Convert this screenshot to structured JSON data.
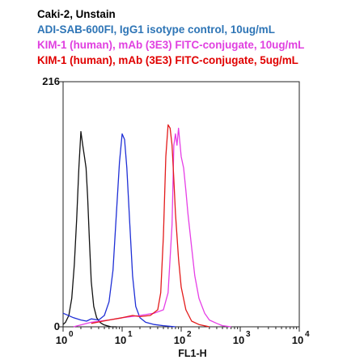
{
  "legend": [
    {
      "text": "Caki-2, Unstain",
      "color": "#000000"
    },
    {
      "text": "ADI-SAB-600FI, IgG1 isotype control, 10ug/mL",
      "color": "#2e75b6"
    },
    {
      "text": "KIM-1 (human),  mAb (3E3) FITC-conjugate, 10ug/mL",
      "color": "#e040e0"
    },
    {
      "text": "KIM-1 (human),  mAb (3E3) FITC-conjugate, 5ug/mL",
      "color": "#e00000"
    }
  ],
  "chart_data": {
    "type": "line",
    "xlabel": "FL1-H",
    "ylabel": "",
    "x_scale": "log",
    "xlim": [
      1,
      10000
    ],
    "ylim": [
      0,
      216
    ],
    "y_ticks": [
      "0",
      "216"
    ],
    "x_ticks": [
      {
        "base": "10",
        "exp": "0"
      },
      {
        "base": "10",
        "exp": "1"
      },
      {
        "base": "10",
        "exp": "2"
      },
      {
        "base": "10",
        "exp": "3"
      },
      {
        "base": "10",
        "exp": "4"
      }
    ],
    "series": [
      {
        "name": "Caki-2, Unstain",
        "color": "#111111",
        "x": [
          1,
          1.1,
          1.25,
          1.4,
          1.55,
          1.7,
          1.85,
          2.0,
          2.15,
          2.3,
          2.45,
          2.6,
          2.8,
          3.0,
          3.3,
          3.7,
          4.2,
          4.8,
          5.5,
          6.5,
          8
        ],
        "y": [
          2,
          4,
          10,
          25,
          55,
          95,
          140,
          172,
          160,
          150,
          140,
          115,
          75,
          40,
          18,
          8,
          4,
          2,
          1,
          0,
          0
        ]
      },
      {
        "name": "ADI-SAB-600FI, IgG1 isotype control, 10ug/mL",
        "color": "#1f2fd6",
        "x": [
          1,
          1.5,
          2,
          2.5,
          3,
          4,
          5,
          6,
          7,
          8,
          9,
          10,
          11,
          12,
          13.5,
          15,
          17,
          20,
          25,
          35,
          50,
          80
        ],
        "y": [
          12,
          8,
          6,
          5,
          7,
          6,
          10,
          22,
          50,
          100,
          145,
          170,
          165,
          140,
          90,
          45,
          18,
          8,
          4,
          2,
          1,
          0
        ]
      },
      {
        "name": "KIM-1 (human),  mAb (3E3) FITC-conjugate, 10ug/mL",
        "color": "#e63fe6",
        "x": [
          1.5,
          3,
          6,
          10,
          20,
          35,
          50,
          60,
          70,
          75,
          80,
          85,
          90,
          100,
          110,
          120,
          130,
          150,
          170,
          200,
          250,
          300,
          400,
          500,
          700
        ],
        "y": [
          0,
          4,
          6,
          8,
          10,
          12,
          15,
          30,
          90,
          160,
          170,
          160,
          175,
          150,
          140,
          120,
          100,
          70,
          45,
          25,
          12,
          6,
          3,
          1,
          0
        ]
      },
      {
        "name": "KIM-1 (human),  mAb (3E3) FITC-conjugate, 5ug/mL",
        "color": "#e31b1b",
        "x": [
          3,
          6,
          10,
          15,
          20,
          30,
          40,
          45,
          50,
          55,
          60,
          65,
          70,
          75,
          80,
          90,
          100,
          120,
          150,
          200,
          300
        ],
        "y": [
          3,
          6,
          8,
          10,
          9,
          10,
          15,
          30,
          80,
          150,
          178,
          175,
          160,
          130,
          100,
          60,
          35,
          15,
          5,
          2,
          0
        ]
      }
    ]
  }
}
